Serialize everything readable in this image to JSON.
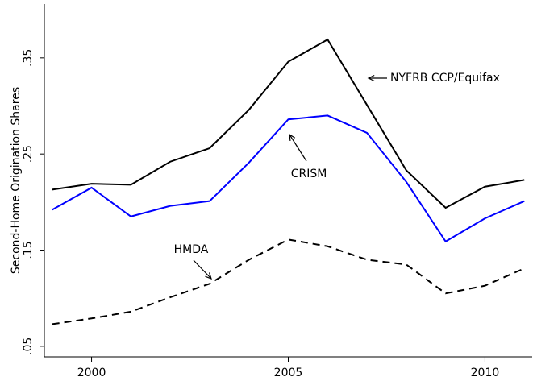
{
  "chart_data": {
    "type": "line",
    "y_label": "Second-Home Origination Shares",
    "x": [
      1999,
      2000,
      2001,
      2002,
      2003,
      2004,
      2005,
      2006,
      2007,
      2008,
      2009,
      2010,
      2011
    ],
    "series": [
      {
        "name": "NYFRB CCP/Equifax",
        "color": "#000000",
        "style": "solid",
        "values": [
          0.213,
          0.219,
          0.218,
          0.242,
          0.256,
          0.296,
          0.346,
          0.369,
          0.301,
          0.233,
          0.194,
          0.216,
          0.223
        ]
      },
      {
        "name": "CRISM",
        "color": "#0000ff",
        "style": "solid",
        "values": [
          0.192,
          0.215,
          0.185,
          0.196,
          0.201,
          0.241,
          0.286,
          0.29,
          0.272,
          0.221,
          0.159,
          0.183,
          0.201
        ]
      },
      {
        "name": "HMDA",
        "color": "#000000",
        "style": "dashed",
        "values": [
          0.073,
          0.079,
          0.086,
          0.101,
          0.115,
          0.14,
          0.161,
          0.154,
          0.14,
          0.135,
          0.105,
          0.113,
          0.131
        ]
      }
    ],
    "xlim": [
      1998.8,
      2011.2
    ],
    "xticks": [
      2000,
      2005,
      2010
    ],
    "ylim": [
      0.039,
      0.406
    ],
    "yticks": [
      {
        "value": 0.05,
        "label": ".05"
      },
      {
        "value": 0.15,
        "label": ".15"
      },
      {
        "value": 0.25,
        "label": ".25"
      },
      {
        "value": 0.35,
        "label": ".35"
      }
    ]
  }
}
